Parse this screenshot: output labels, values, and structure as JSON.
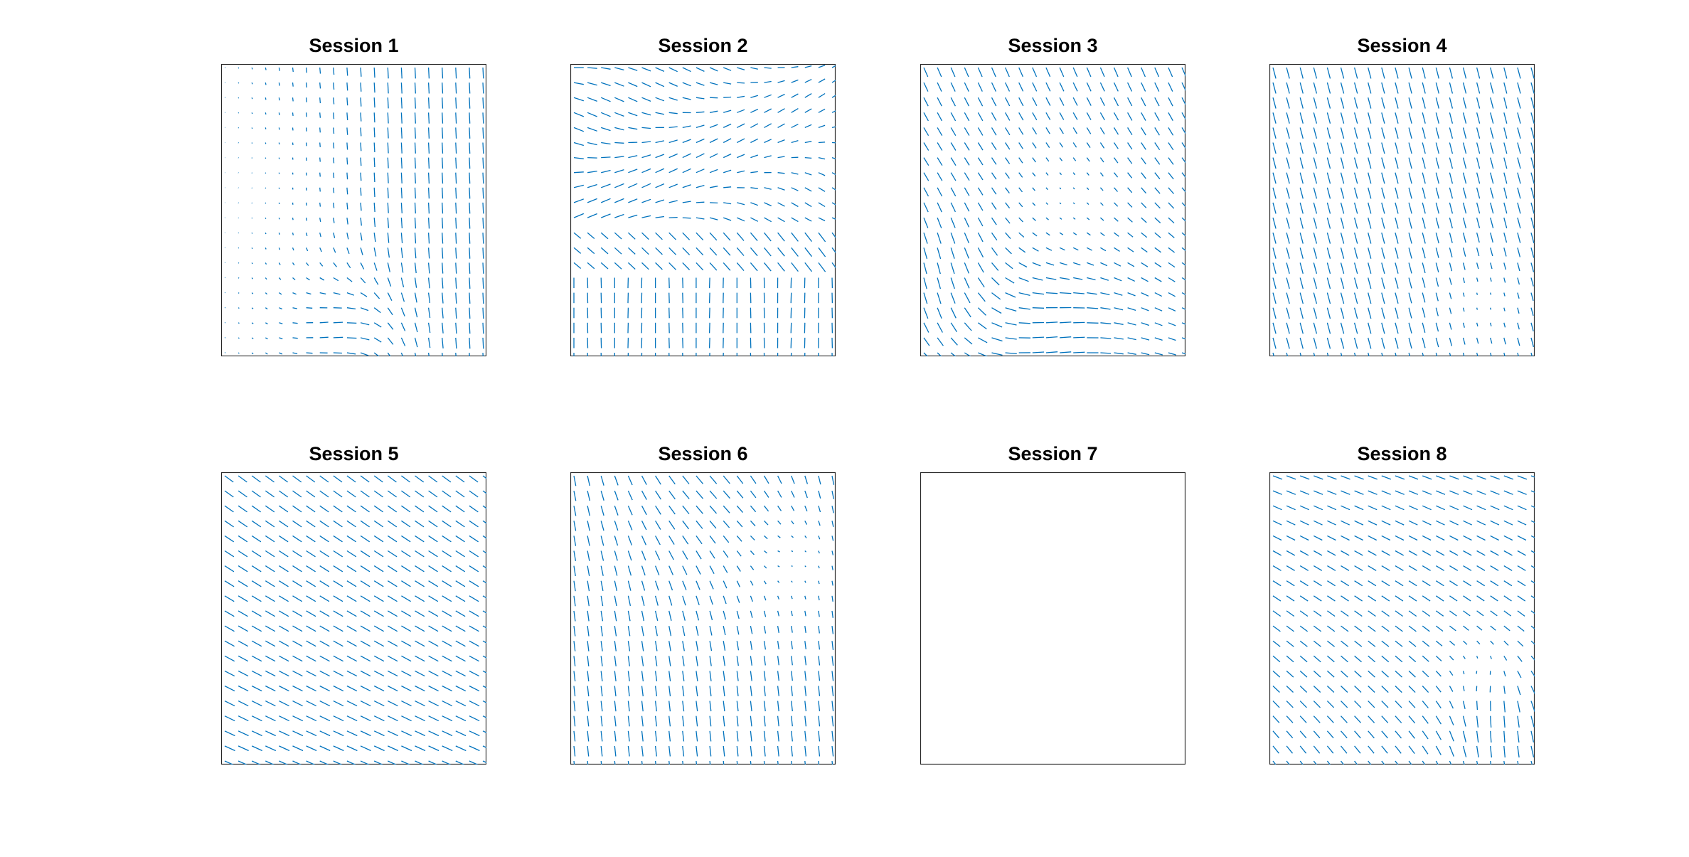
{
  "figure": {
    "quiver_color": "#0072BD",
    "axes_color": "#262626"
  },
  "chart_data": [
    {
      "type": "quiver",
      "title": "Session 1",
      "grid": false,
      "xlim": [
        0,
        1
      ],
      "ylim": [
        0,
        1
      ],
      "field": "session1",
      "has_data": true
    },
    {
      "type": "quiver",
      "title": "Session 2",
      "grid": false,
      "xlim": [
        0,
        1
      ],
      "ylim": [
        0,
        1
      ],
      "field": "session2",
      "has_data": true
    },
    {
      "type": "quiver",
      "title": "Session 3",
      "grid": false,
      "xlim": [
        0,
        1
      ],
      "ylim": [
        0,
        1
      ],
      "field": "session3",
      "has_data": true
    },
    {
      "type": "quiver",
      "title": "Session 4",
      "grid": false,
      "xlim": [
        0,
        1
      ],
      "ylim": [
        0,
        1
      ],
      "field": "session4",
      "has_data": true
    },
    {
      "type": "quiver",
      "title": "Session 5",
      "grid": false,
      "xlim": [
        0,
        1
      ],
      "ylim": [
        0,
        1
      ],
      "field": "session5",
      "has_data": true
    },
    {
      "type": "quiver",
      "title": "Session 6",
      "grid": false,
      "xlim": [
        0,
        1
      ],
      "ylim": [
        0,
        1
      ],
      "field": "session6",
      "has_data": true
    },
    {
      "type": "quiver",
      "title": "Session 7",
      "grid": false,
      "xlim": [
        0,
        1
      ],
      "ylim": [
        0,
        1
      ],
      "field": "none",
      "has_data": false
    },
    {
      "type": "quiver",
      "title": "Session 8",
      "grid": false,
      "xlim": [
        0,
        1
      ],
      "ylim": [
        0,
        1
      ],
      "field": "session8",
      "has_data": true
    }
  ]
}
